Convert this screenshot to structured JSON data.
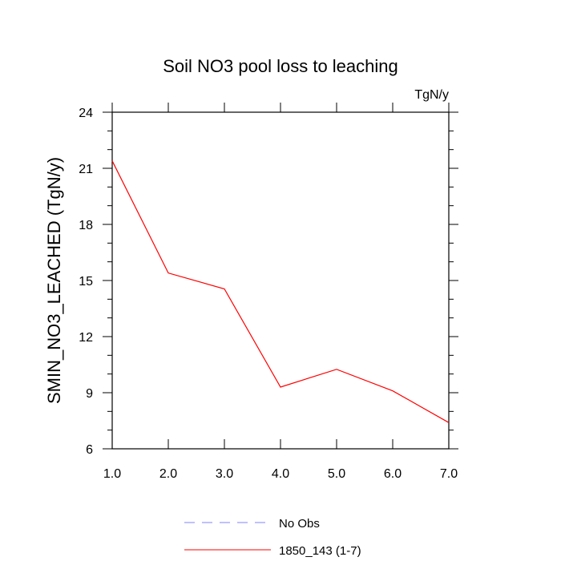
{
  "chart_data": {
    "type": "line",
    "title": "Soil NO3 pool loss to leaching",
    "units_label": "TgN/y",
    "xlabel": "",
    "ylabel": "SMIN_NO3_LEACHED  (TgN/y)",
    "xlim": [
      1.0,
      7.0
    ],
    "ylim": [
      6,
      24
    ],
    "xticks": [
      "1.0",
      "2.0",
      "3.0",
      "4.0",
      "5.0",
      "6.0",
      "7.0"
    ],
    "yticks": [
      "6",
      "9",
      "12",
      "15",
      "18",
      "21",
      "24"
    ],
    "grid": false,
    "legend_position": "bottom-center",
    "series": [
      {
        "name": "No Obs",
        "color": "#8080ff",
        "dash": "dashed",
        "x": [],
        "y": []
      },
      {
        "name": "1850_143 (1-7)",
        "color": "#ff0000",
        "dash": "solid",
        "x": [
          1.0,
          2.0,
          3.0,
          4.0,
          5.0,
          6.0,
          7.0
        ],
        "y": [
          21.4,
          15.4,
          14.55,
          9.3,
          10.25,
          9.1,
          7.4
        ]
      }
    ]
  }
}
